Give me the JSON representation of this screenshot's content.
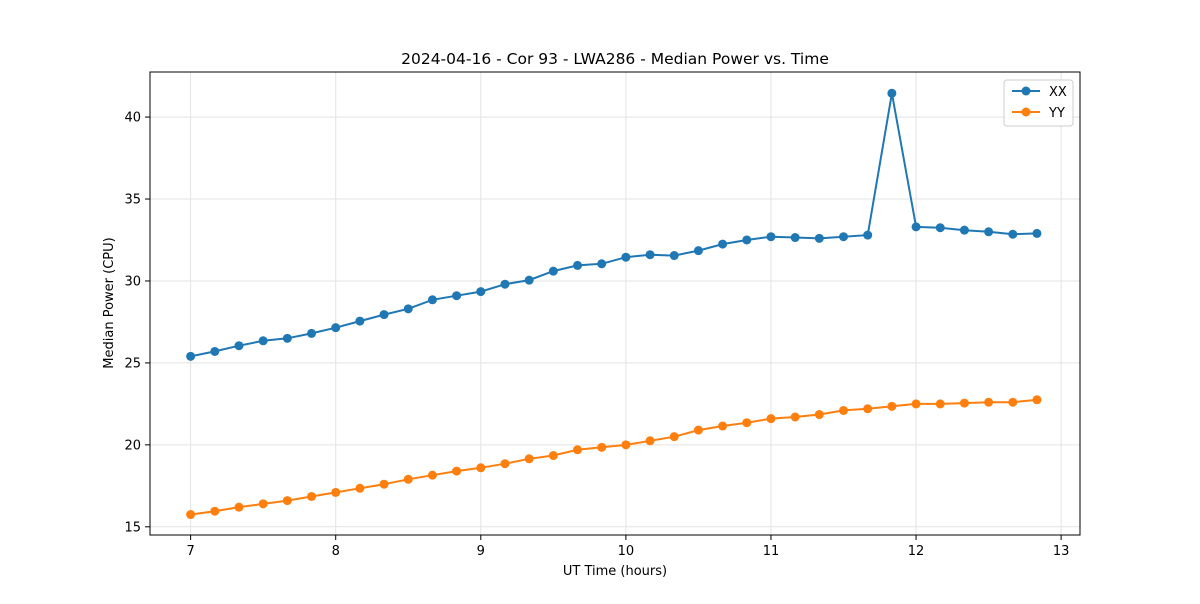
{
  "chart_data": {
    "type": "line",
    "title": "2024-04-16 - Cor 93 - LWA286 - Median Power vs. Time",
    "xlabel": "UT Time (hours)",
    "ylabel": "Median Power (CPU)",
    "xlim": [
      6.72,
      13.13
    ],
    "ylim": [
      14.5,
      42.75
    ],
    "xticks": [
      7,
      8,
      9,
      10,
      11,
      12,
      13
    ],
    "xtick_labels": [
      "7",
      "8",
      "9",
      "10",
      "11",
      "12",
      "13"
    ],
    "yticks": [
      15,
      20,
      25,
      30,
      35,
      40
    ],
    "ytick_labels": [
      "15",
      "20",
      "25",
      "30",
      "35",
      "40"
    ],
    "grid": true,
    "legend_position": "top-right",
    "x": [
      7.0,
      7.1667,
      7.3333,
      7.5,
      7.6667,
      7.8333,
      8.0,
      8.1667,
      8.3333,
      8.5,
      8.6667,
      8.8333,
      9.0,
      9.1667,
      9.3333,
      9.5,
      9.6667,
      9.8333,
      10.0,
      10.1667,
      10.3333,
      10.5,
      10.6667,
      10.8333,
      11.0,
      11.1667,
      11.3333,
      11.5,
      11.6667,
      11.8333,
      12.0,
      12.1667,
      12.3333,
      12.5,
      12.6667,
      12.8333
    ],
    "series": [
      {
        "name": "XX",
        "color": "#1f77b4",
        "values": [
          25.4,
          25.7,
          26.05,
          26.35,
          26.5,
          26.8,
          27.15,
          27.55,
          27.95,
          28.3,
          28.85,
          29.1,
          29.35,
          29.8,
          30.05,
          30.6,
          30.95,
          31.05,
          31.45,
          31.6,
          31.55,
          31.85,
          32.25,
          32.5,
          32.7,
          32.65,
          32.6,
          32.7,
          32.8,
          41.45,
          33.3,
          33.25,
          33.1,
          33.0,
          32.85,
          32.9
        ]
      },
      {
        "name": "YY",
        "color": "#ff7f0e",
        "values": [
          15.75,
          15.95,
          16.2,
          16.4,
          16.6,
          16.85,
          17.1,
          17.35,
          17.6,
          17.9,
          18.15,
          18.4,
          18.6,
          18.85,
          19.15,
          19.35,
          19.7,
          19.85,
          20.0,
          20.25,
          20.5,
          20.9,
          21.15,
          21.35,
          21.6,
          21.7,
          21.85,
          22.1,
          22.2,
          22.35,
          22.5,
          22.5,
          22.55,
          22.6,
          22.6,
          22.75
        ]
      }
    ]
  }
}
